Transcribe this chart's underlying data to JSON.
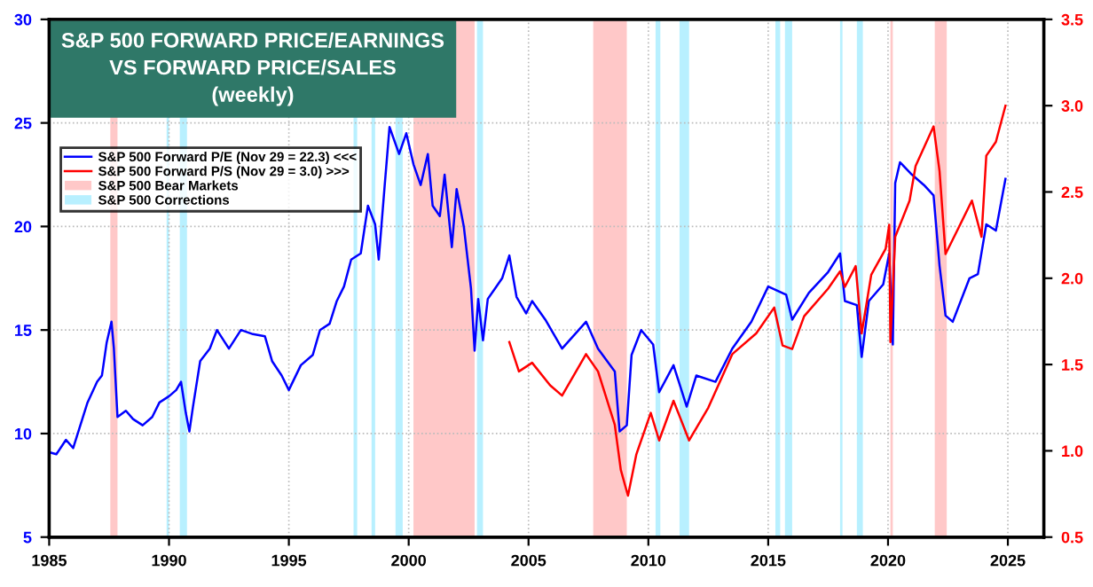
{
  "chart_data": {
    "type": "line",
    "title": "S&P 500 FORWARD PRICE/EARNINGS\nVS FORWARD PRICE/SALES\n(weekly)",
    "series": [
      {
        "name": "S&P 500 Forward P/E (Nov 29 = 22.3) <<<",
        "color": "#0000ff",
        "axis": "y",
        "x": [
          1985.0,
          1985.3,
          1985.7,
          1986.0,
          1986.3,
          1986.6,
          1987.0,
          1987.2,
          1987.4,
          1987.6,
          1987.7,
          1987.85,
          1988.2,
          1988.5,
          1988.9,
          1989.3,
          1989.6,
          1990.0,
          1990.3,
          1990.5,
          1990.7,
          1990.85,
          1991.0,
          1991.3,
          1991.7,
          1992.0,
          1992.5,
          1993.0,
          1993.5,
          1994.0,
          1994.3,
          1994.7,
          1995.0,
          1995.5,
          1996.0,
          1996.3,
          1996.7,
          1997.0,
          1997.3,
          1997.6,
          1998.0,
          1998.3,
          1998.6,
          1998.75,
          1999.0,
          1999.2,
          1999.6,
          1999.9,
          2000.2,
          2000.5,
          2000.8,
          2001.0,
          2001.3,
          2001.5,
          2001.8,
          2002.0,
          2002.3,
          2002.6,
          2002.75,
          2002.9,
          2003.1,
          2003.3,
          2003.6,
          2003.9,
          2004.2,
          2004.5,
          2004.9,
          2005.15,
          2005.7,
          2006.4,
          2007.4,
          2007.9,
          2008.6,
          2008.8,
          2009.1,
          2009.3,
          2009.7,
          2010.2,
          2010.45,
          2011.05,
          2011.6,
          2012.0,
          2012.8,
          2013.5,
          2014.3,
          2015.0,
          2015.75,
          2016.0,
          2016.7,
          2017.5,
          2018.0,
          2018.2,
          2018.7,
          2018.9,
          2019.2,
          2019.8,
          2020.05,
          2020.2,
          2020.3,
          2020.5,
          2021.0,
          2021.5,
          2021.9,
          2022.15,
          2022.4,
          2022.7,
          2023.4,
          2023.75,
          2024.1,
          2024.5,
          2024.9
        ],
        "values": [
          9.1,
          9.0,
          9.7,
          9.3,
          10.4,
          11.5,
          12.5,
          12.8,
          14.4,
          15.4,
          14.1,
          10.8,
          11.1,
          10.7,
          10.4,
          10.8,
          11.5,
          11.8,
          12.1,
          12.5,
          11.0,
          10.1,
          11.3,
          13.5,
          14.1,
          15.0,
          14.1,
          15.0,
          14.8,
          14.7,
          13.5,
          12.8,
          12.1,
          13.3,
          13.8,
          15.0,
          15.3,
          16.4,
          17.1,
          18.4,
          18.7,
          21.0,
          20.1,
          18.4,
          22.0,
          24.8,
          23.5,
          24.5,
          23.0,
          22.0,
          23.5,
          21.0,
          20.5,
          22.5,
          19.0,
          21.8,
          20.0,
          17.0,
          14.0,
          16.5,
          14.5,
          16.5,
          17.0,
          17.5,
          18.6,
          16.6,
          15.8,
          16.4,
          15.5,
          14.1,
          15.4,
          14.1,
          13.0,
          10.1,
          10.4,
          13.8,
          15.0,
          14.3,
          12.0,
          13.3,
          11.3,
          12.8,
          12.5,
          14.1,
          15.4,
          17.1,
          16.7,
          15.5,
          16.8,
          17.8,
          18.7,
          16.4,
          16.2,
          13.7,
          16.4,
          17.2,
          18.7,
          14.3,
          22.1,
          23.1,
          22.5,
          22.0,
          21.5,
          18.1,
          15.7,
          15.4,
          17.5,
          17.7,
          20.1,
          19.8,
          22.3
        ]
      },
      {
        "name": "S&P 500 Forward P/S (Nov 29 = 3.0) >>>",
        "color": "#ff0000",
        "axis": "y2",
        "x": [
          2004.2,
          2004.6,
          2005.15,
          2005.9,
          2006.4,
          2007.4,
          2007.9,
          2008.6,
          2008.85,
          2009.15,
          2009.5,
          2010.1,
          2010.45,
          2011.05,
          2011.7,
          2012.5,
          2013.5,
          2014.5,
          2015.25,
          2015.6,
          2016.0,
          2016.5,
          2017.5,
          2018.0,
          2018.2,
          2018.65,
          2018.9,
          2019.3,
          2019.9,
          2020.05,
          2020.1,
          2020.3,
          2020.9,
          2021.15,
          2021.9,
          2022.15,
          2022.4,
          2022.9,
          2023.5,
          2023.9,
          2024.1,
          2024.5,
          2024.9
        ],
        "values": [
          1.63,
          1.46,
          1.51,
          1.38,
          1.32,
          1.56,
          1.46,
          1.15,
          0.89,
          0.74,
          0.98,
          1.22,
          1.06,
          1.29,
          1.06,
          1.25,
          1.56,
          1.68,
          1.83,
          1.61,
          1.59,
          1.78,
          1.94,
          2.04,
          1.95,
          2.07,
          1.68,
          2.02,
          2.17,
          2.31,
          1.63,
          2.24,
          2.45,
          2.65,
          2.88,
          2.62,
          2.14,
          2.28,
          2.45,
          2.24,
          2.71,
          2.79,
          3.0
        ]
      }
    ],
    "bands": [
      {
        "axis": "x",
        "from": 1987.55,
        "to": 1987.85,
        "label": "S&P 500 Bear Markets",
        "color": "#ffc8c8"
      },
      {
        "axis": "x",
        "from": 2000.2,
        "to": 2002.75,
        "color": "#ffc8c8"
      },
      {
        "axis": "x",
        "from": 2007.7,
        "to": 2009.1,
        "color": "#ffc8c8"
      },
      {
        "axis": "x",
        "from": 2020.1,
        "to": 2020.2,
        "color": "#ffc8c8"
      },
      {
        "axis": "x",
        "from": 2021.95,
        "to": 2022.45,
        "color": "#ffc8c8"
      },
      {
        "axis": "x",
        "from": 1989.9,
        "to": 1990.0,
        "label": "S&P 500 Corrections",
        "color": "#b8f0ff"
      },
      {
        "axis": "x",
        "from": 1990.45,
        "to": 1990.75,
        "color": "#b8f0ff"
      },
      {
        "axis": "x",
        "from": 1997.7,
        "to": 1997.85,
        "color": "#b8f0ff"
      },
      {
        "axis": "x",
        "from": 1998.45,
        "to": 1998.6,
        "color": "#b8f0ff"
      },
      {
        "axis": "x",
        "from": 1999.45,
        "to": 1999.75,
        "color": "#b8f0ff"
      },
      {
        "axis": "x",
        "from": 2002.85,
        "to": 2003.1,
        "color": "#b8f0ff"
      },
      {
        "axis": "x",
        "from": 2010.3,
        "to": 2010.5,
        "color": "#b8f0ff"
      },
      {
        "axis": "x",
        "from": 2011.3,
        "to": 2011.7,
        "color": "#b8f0ff"
      },
      {
        "axis": "x",
        "from": 2015.3,
        "to": 2015.5,
        "color": "#b8f0ff"
      },
      {
        "axis": "x",
        "from": 2015.7,
        "to": 2016.0,
        "color": "#b8f0ff"
      },
      {
        "axis": "x",
        "from": 2018.0,
        "to": 2018.1,
        "color": "#b8f0ff"
      },
      {
        "axis": "x",
        "from": 2018.7,
        "to": 2018.95,
        "color": "#b8f0ff"
      }
    ],
    "xlim": [
      1985,
      2026.5
    ],
    "xticks": [
      1985,
      1990,
      1995,
      2000,
      2005,
      2010,
      2015,
      2020,
      2025
    ],
    "ylim": [
      5,
      30
    ],
    "yticks": [
      5,
      10,
      15,
      20,
      25,
      30
    ],
    "y2lim": [
      0.5,
      3.5
    ],
    "y2ticks": [
      {
        "value": 0.5,
        "label": "0.5"
      },
      {
        "value": 1.0,
        "label": "1.0"
      },
      {
        "value": 1.5,
        "label": "1.5"
      },
      {
        "value": 2.0,
        "label": "2.0"
      },
      {
        "value": 2.5,
        "label": "2.5"
      },
      {
        "value": 3.0,
        "label": "3.0"
      },
      {
        "value": 3.5,
        "label": "3.5"
      }
    ],
    "grid": true,
    "legend": "top left",
    "marker": "none",
    "line_style": "solid"
  }
}
